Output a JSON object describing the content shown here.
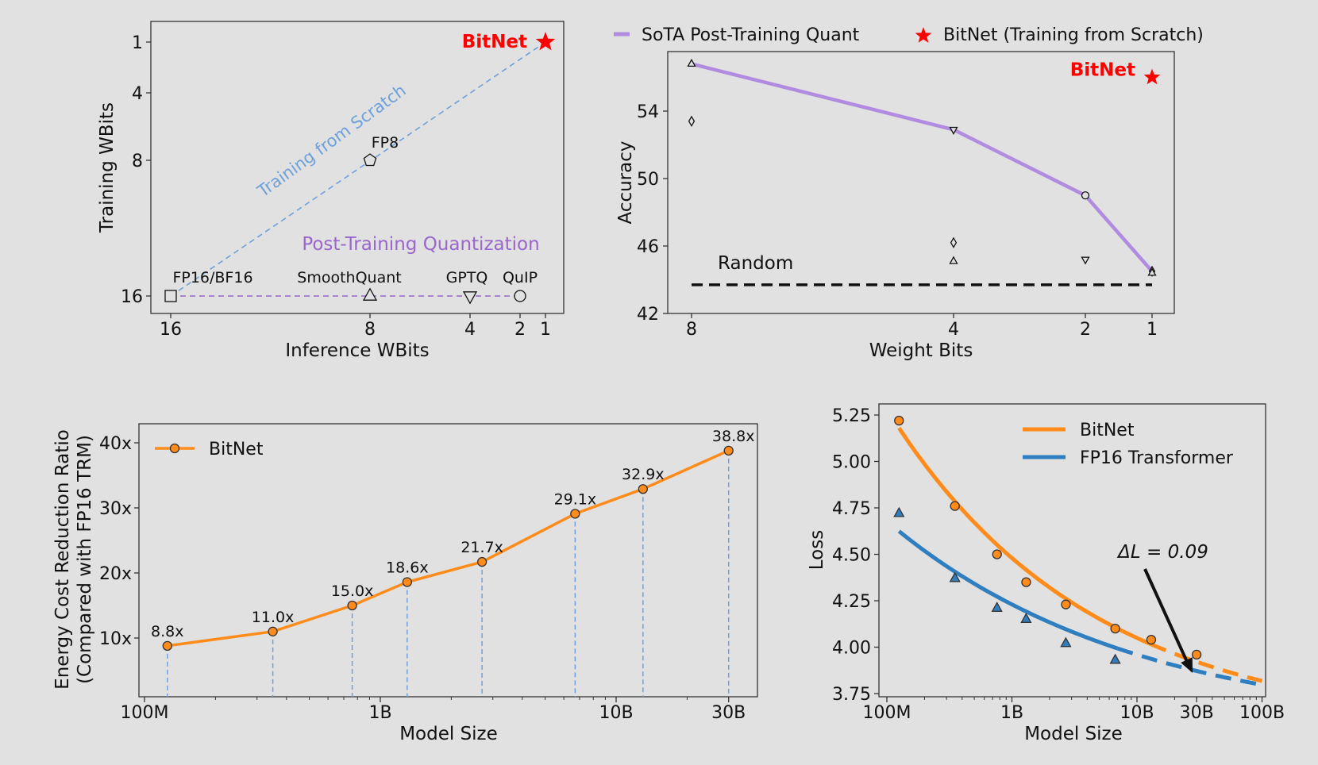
{
  "chart_data": [
    {
      "type": "scatter",
      "xlabel": "Inference WBits",
      "ylabel": "Training WBits",
      "xticks": [
        "16",
        "8",
        "4",
        "2",
        "1"
      ],
      "yticks": [
        "1",
        "4",
        "8",
        "16"
      ],
      "annotations": {
        "bitnet": "BitNet",
        "scratch": "Training from Scratch",
        "ptq": "Post-Training Quantization"
      },
      "points": [
        {
          "label": "FP16/BF16",
          "x": 16,
          "y": 16,
          "marker": "square"
        },
        {
          "label": "SmoothQuant",
          "x": 8,
          "y": 16,
          "marker": "triangle-up"
        },
        {
          "label": "GPTQ",
          "x": 4,
          "y": 16,
          "marker": "triangle-down"
        },
        {
          "label": "QuIP",
          "x": 2,
          "y": 16,
          "marker": "circle"
        },
        {
          "label": "FP8",
          "x": 8,
          "y": 8,
          "marker": "pentagon"
        },
        {
          "label": "",
          "x": 1,
          "y": 1,
          "marker": "star"
        }
      ],
      "colors": {
        "scratch": "#6ea1dc",
        "ptq": "#9966cc",
        "bitnet": "#ff0000"
      }
    },
    {
      "type": "line",
      "xlabel": "Weight Bits",
      "ylabel": "Accuracy",
      "xticks": [
        "8",
        "4",
        "2",
        "1"
      ],
      "yticks": [
        "42",
        "46",
        "50",
        "54"
      ],
      "ylim": [
        42,
        58
      ],
      "legend": [
        {
          "name": "SoTA Post-Training Quant",
          "marker": "line",
          "color": "#b18be0"
        },
        {
          "name": "BitNet (Training from Scratch)",
          "marker": "star",
          "color": "#ff0000"
        }
      ],
      "legend_placement": "top",
      "series": [
        {
          "name": "SoTA Post-Training Quant",
          "x": [
            8,
            4,
            2,
            1
          ],
          "y": [
            56.8,
            52.9,
            49.0,
            44.5
          ]
        }
      ],
      "extra_markers": [
        {
          "x": 8,
          "y": 56.8,
          "marker": "triangle-up"
        },
        {
          "x": 8,
          "y": 53.4,
          "marker": "diamond"
        },
        {
          "x": 4,
          "y": 52.9,
          "marker": "triangle-down"
        },
        {
          "x": 4,
          "y": 46.2,
          "marker": "diamond"
        },
        {
          "x": 4,
          "y": 45.1,
          "marker": "triangle-up"
        },
        {
          "x": 2,
          "y": 49.0,
          "marker": "circle"
        },
        {
          "x": 2,
          "y": 45.2,
          "marker": "triangle-down"
        },
        {
          "x": 1,
          "y": 44.5,
          "marker": "diamond"
        },
        {
          "x": 1,
          "y": 44.4,
          "marker": "triangle-up"
        }
      ],
      "bitnet": {
        "label": "BitNet",
        "x": 1,
        "y": 56.0
      },
      "random": {
        "label": "Random",
        "y": 43.7
      }
    },
    {
      "type": "line",
      "xlabel": "Model Size",
      "ylabel": "Energy Cost Reduction Ratio",
      "ylabel2": "(Compared with FP16 TRM)",
      "xscale": "log",
      "xticks": [
        {
          "v": 0.1,
          "label": "100M"
        },
        {
          "v": 1,
          "label": "1B"
        },
        {
          "v": 10,
          "label": "10B"
        },
        {
          "v": 30,
          "label": "30B"
        }
      ],
      "yticks": [
        {
          "v": 10,
          "label": "10x"
        },
        {
          "v": 20,
          "label": "20x"
        },
        {
          "v": 30,
          "label": "30x"
        },
        {
          "v": 40,
          "label": "40x"
        }
      ],
      "legend": [
        "BitNet"
      ],
      "series": [
        {
          "name": "BitNet",
          "x": [
            0.125,
            0.35,
            0.76,
            1.3,
            2.7,
            6.7,
            13,
            30
          ],
          "y": [
            8.8,
            11.0,
            15.0,
            18.6,
            21.7,
            29.1,
            32.9,
            38.8
          ],
          "labels": [
            "8.8x",
            "11.0x",
            "15.0x",
            "18.6x",
            "21.7x",
            "29.1x",
            "32.9x",
            "38.8x"
          ]
        }
      ],
      "colors": {
        "line": "#ff8c1a",
        "drop": "#6ea1dc"
      }
    },
    {
      "type": "line",
      "xlabel": "Model Size",
      "ylabel": "Loss",
      "xscale": "log",
      "xticks": [
        {
          "v": 0.1,
          "label": "100M"
        },
        {
          "v": 1,
          "label": "1B"
        },
        {
          "v": 10,
          "label": "10B"
        },
        {
          "v": 30,
          "label": "30B"
        },
        {
          "v": 100,
          "label": "100B"
        }
      ],
      "yticks": [
        "3.75",
        "4.00",
        "4.25",
        "4.50",
        "4.75",
        "5.00",
        "5.25"
      ],
      "ylim": [
        3.75,
        5.3
      ],
      "legend": [
        "BitNet",
        "FP16 Transformer"
      ],
      "series": [
        {
          "name": "BitNet",
          "x": [
            0.125,
            0.35,
            0.76,
            1.3,
            2.7,
            6.7,
            13,
            30
          ],
          "y": [
            5.22,
            4.76,
            4.5,
            4.35,
            4.23,
            4.1,
            4.04,
            3.96
          ]
        },
        {
          "name": "FP16 Transformer",
          "x": [
            0.125,
            0.35,
            0.76,
            1.3,
            2.7,
            6.7
          ],
          "y": [
            4.72,
            4.37,
            4.21,
            4.15,
            4.02,
            3.93
          ]
        }
      ],
      "annotation": "ΔL = 0.09",
      "colors": {
        "bitnet": "#ff8c1a",
        "fp16": "#2f7ebf"
      }
    }
  ]
}
